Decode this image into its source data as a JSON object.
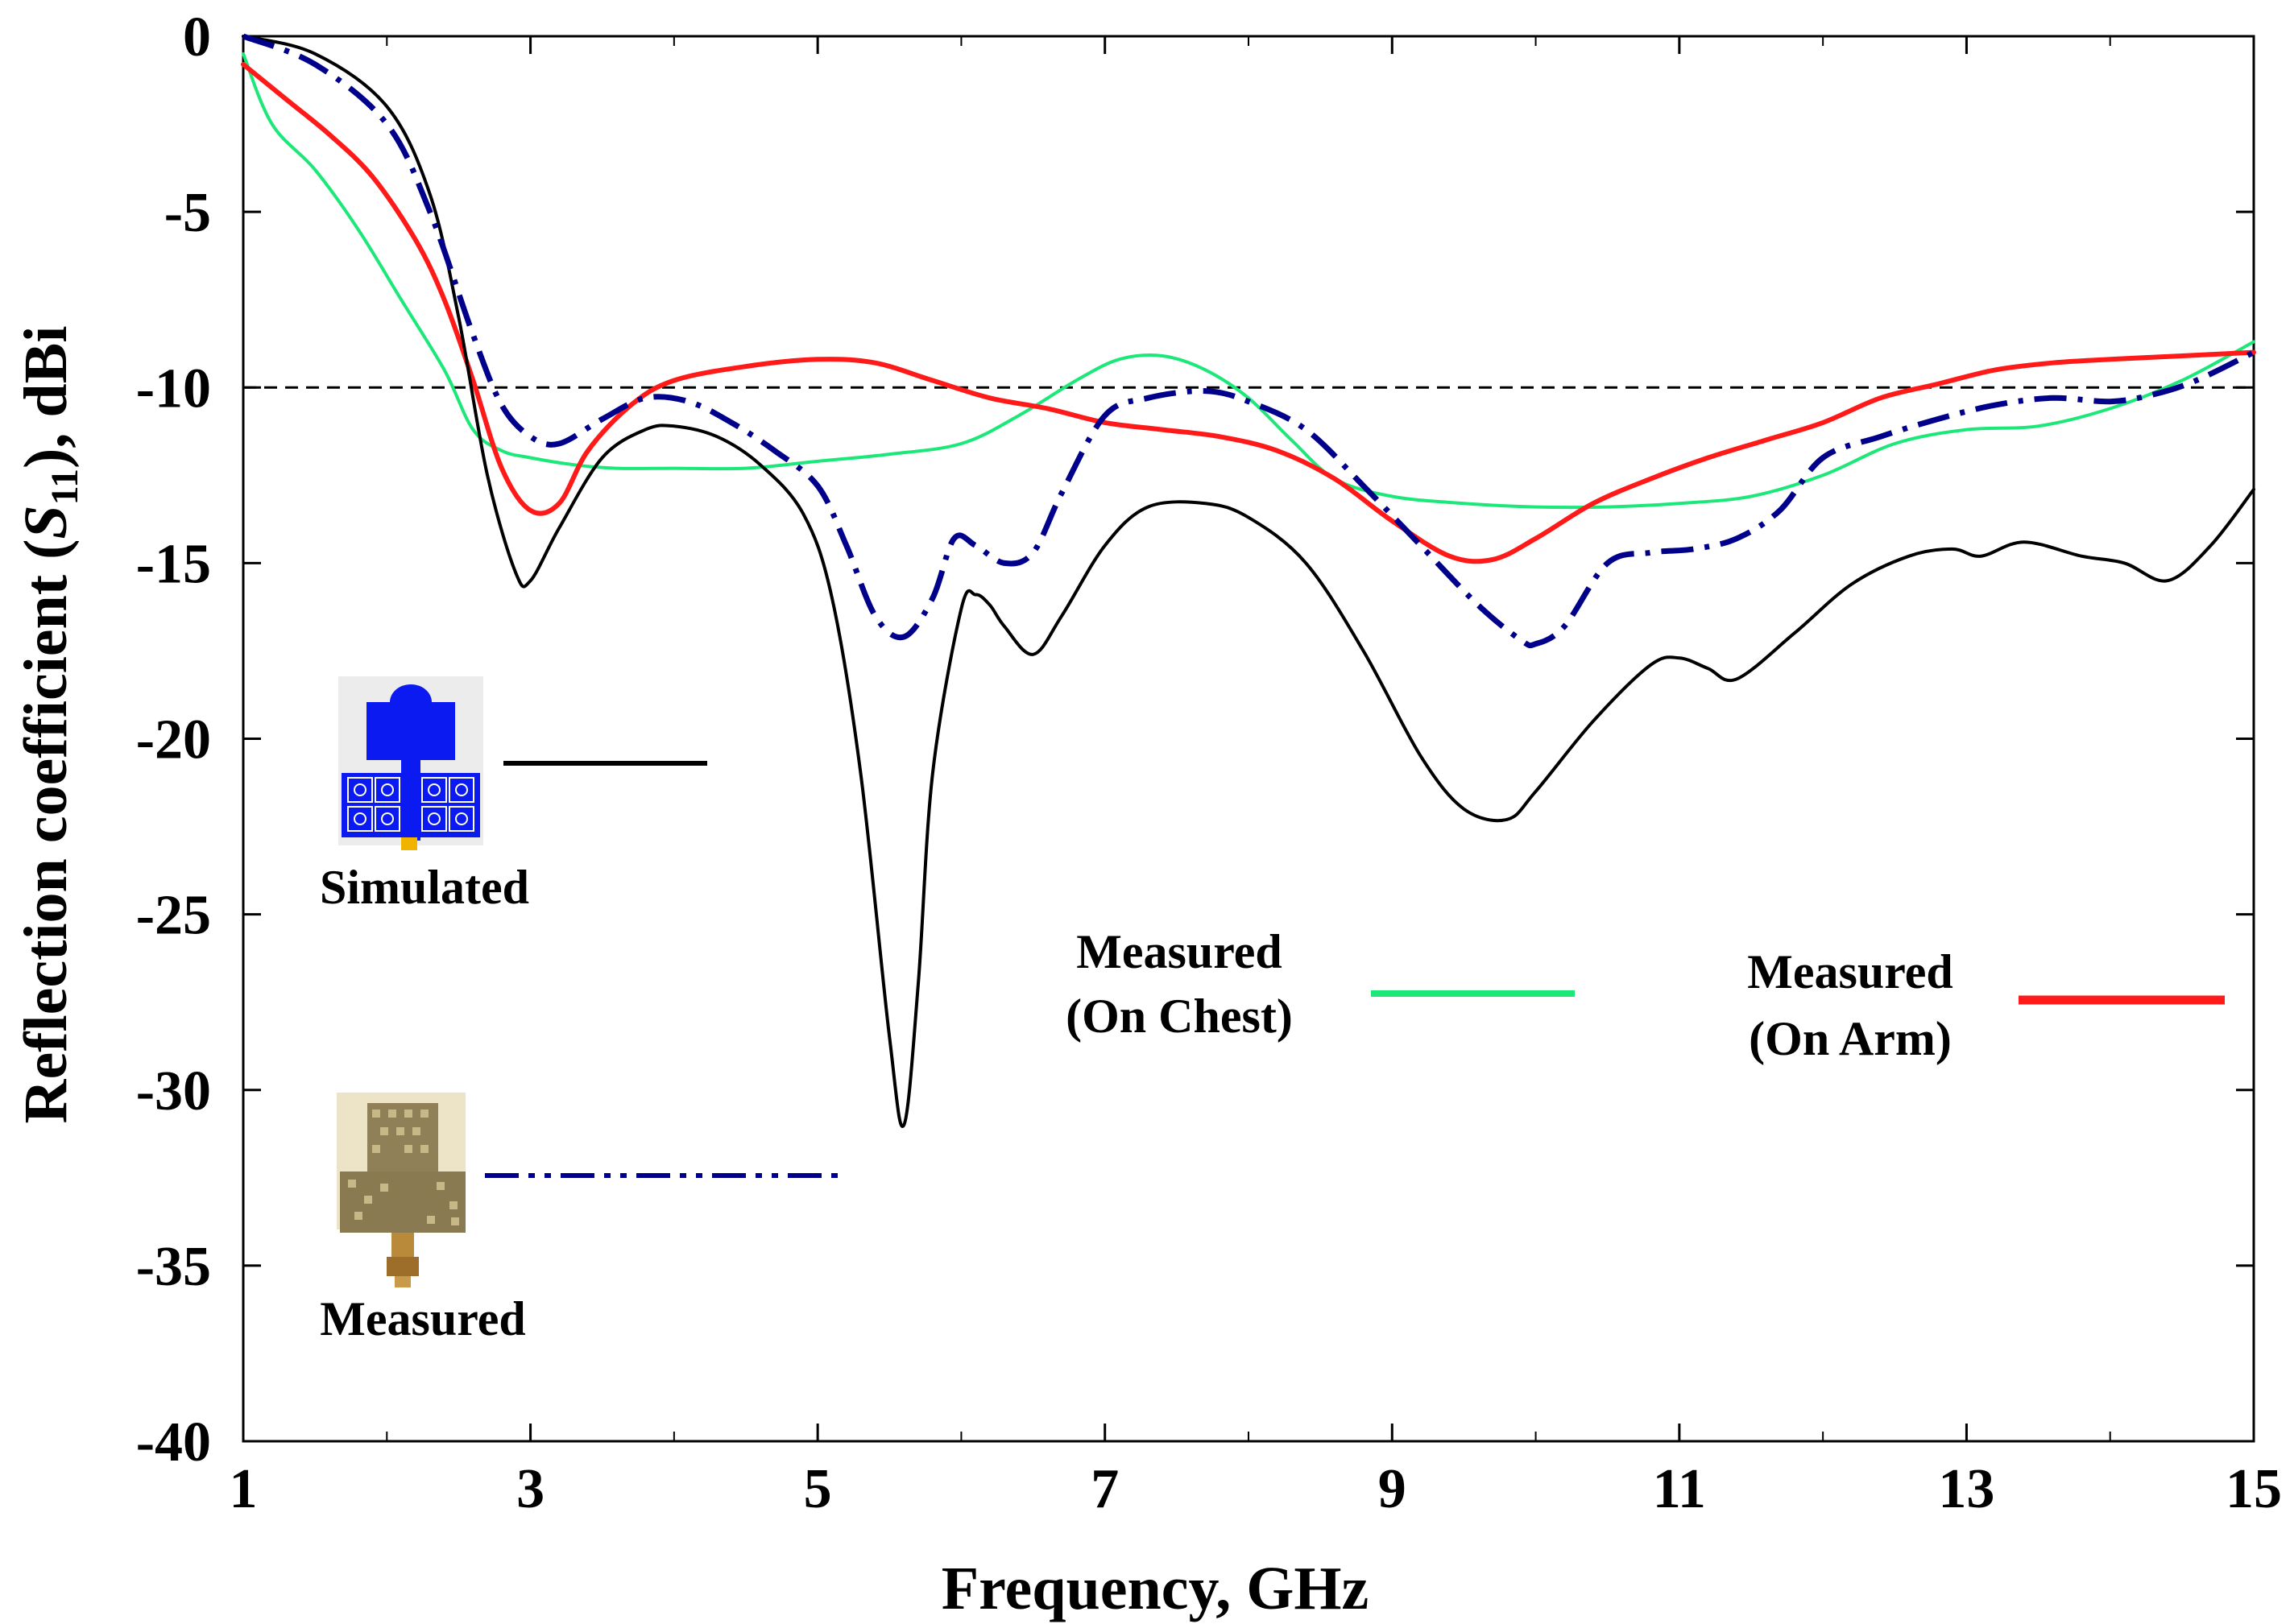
{
  "chart_data": {
    "type": "line",
    "title": "",
    "xlabel": "Frequency, GHz",
    "ylabel_parts": [
      "Reflection coefficient (",
      "S",
      "11",
      "), dBi"
    ],
    "xlim": [
      1,
      15
    ],
    "ylim": [
      -40,
      0
    ],
    "xticks": [
      "1",
      "3",
      "5",
      "7",
      "9",
      "11",
      "13",
      "15"
    ],
    "yticks": [
      "0",
      "-5",
      "-10",
      "-15",
      "-20",
      "-25",
      "-30",
      "-35",
      "-40"
    ],
    "reference_line": {
      "y": -10,
      "style": "dashed",
      "color": "#000000"
    },
    "series": [
      {
        "name": "Simulated",
        "color": "#000000",
        "style": "solid",
        "x": [
          1,
          1.5,
          2,
          2.3,
          2.5,
          2.7,
          2.9,
          3.0,
          3.2,
          3.5,
          3.8,
          4.0,
          4.3,
          4.6,
          4.9,
          5.1,
          5.3,
          5.5,
          5.6,
          5.7,
          5.8,
          6.0,
          6.1,
          6.2,
          6.3,
          6.5,
          6.7,
          7.0,
          7.3,
          7.7,
          8.0,
          8.4,
          8.8,
          9.2,
          9.5,
          9.8,
          10.0,
          10.4,
          10.8,
          11.0,
          11.2,
          11.4,
          11.8,
          12.2,
          12.6,
          12.9,
          13.1,
          13.4,
          13.8,
          14.1,
          14.4,
          14.7,
          15.0
        ],
        "y": [
          0,
          -0.5,
          -2.0,
          -4.5,
          -8.0,
          -12.5,
          -15.3,
          -15.5,
          -14.0,
          -12.0,
          -11.2,
          -11.1,
          -11.4,
          -12.2,
          -13.6,
          -16.0,
          -21.0,
          -28.5,
          -31.0,
          -27.0,
          -21.0,
          -16.3,
          -15.9,
          -16.2,
          -16.8,
          -17.6,
          -16.5,
          -14.5,
          -13.4,
          -13.3,
          -13.7,
          -15.0,
          -17.5,
          -20.5,
          -22.0,
          -22.3,
          -21.5,
          -19.5,
          -17.9,
          -17.7,
          -18.0,
          -18.3,
          -17.0,
          -15.6,
          -14.8,
          -14.6,
          -14.8,
          -14.4,
          -14.8,
          -15.0,
          -15.5,
          -14.5,
          -12.9
        ]
      },
      {
        "name": "Measured",
        "color": "#00008b",
        "style": "dash-dot",
        "x": [
          1,
          1.5,
          2,
          2.3,
          2.6,
          2.8,
          3.0,
          3.2,
          3.5,
          3.8,
          4.1,
          4.4,
          4.7,
          5.0,
          5.2,
          5.4,
          5.6,
          5.8,
          5.95,
          6.1,
          6.3,
          6.5,
          6.7,
          7.0,
          7.3,
          7.7,
          8.0,
          8.4,
          8.8,
          9.2,
          9.6,
          9.9,
          10.0,
          10.2,
          10.5,
          10.8,
          11.1,
          11.4,
          11.7,
          12.0,
          12.4,
          12.8,
          13.2,
          13.6,
          14.0,
          14.3,
          14.6,
          15.0
        ],
        "y": [
          0,
          -0.8,
          -2.5,
          -5.0,
          -8.5,
          -10.5,
          -11.4,
          -11.6,
          -10.9,
          -10.3,
          -10.4,
          -11.0,
          -11.8,
          -12.8,
          -14.5,
          -16.5,
          -17.1,
          -16.0,
          -14.3,
          -14.5,
          -15.0,
          -14.7,
          -13.0,
          -10.8,
          -10.3,
          -10.1,
          -10.4,
          -11.2,
          -12.8,
          -14.5,
          -16.2,
          -17.2,
          -17.3,
          -16.8,
          -15.0,
          -14.7,
          -14.6,
          -14.3,
          -13.5,
          -12.0,
          -11.4,
          -10.9,
          -10.5,
          -10.3,
          -10.4,
          -10.2,
          -9.8,
          -9.0
        ]
      },
      {
        "name": "Measured (On Chest)",
        "color": "#1ce87a",
        "style": "solid",
        "x": [
          1,
          1.2,
          1.5,
          1.8,
          2.1,
          2.4,
          2.6,
          2.8,
          3.0,
          3.3,
          3.6,
          4.0,
          4.5,
          5.0,
          5.5,
          6.0,
          6.4,
          6.8,
          7.1,
          7.4,
          7.7,
          8.0,
          8.3,
          8.6,
          9.0,
          9.5,
          10.0,
          10.5,
          11.0,
          11.5,
          12.0,
          12.5,
          13.0,
          13.5,
          14.0,
          14.5,
          15.0
        ],
        "y": [
          -0.5,
          -2.5,
          -3.8,
          -5.5,
          -7.5,
          -9.5,
          -11.2,
          -11.8,
          -12.0,
          -12.2,
          -12.3,
          -12.3,
          -12.3,
          -12.1,
          -11.9,
          -11.6,
          -10.8,
          -9.8,
          -9.2,
          -9.1,
          -9.5,
          -10.3,
          -11.5,
          -12.6,
          -13.1,
          -13.3,
          -13.4,
          -13.4,
          -13.3,
          -13.1,
          -12.5,
          -11.6,
          -11.2,
          -11.1,
          -10.6,
          -9.8,
          -8.7
        ]
      },
      {
        "name": "Measured (On Arm)",
        "color": "#ff1a1a",
        "style": "solid",
        "x": [
          1,
          1.3,
          1.6,
          1.9,
          2.2,
          2.4,
          2.6,
          2.8,
          3.0,
          3.2,
          3.4,
          3.7,
          4.0,
          4.5,
          5.0,
          5.4,
          5.8,
          6.2,
          6.6,
          7.0,
          7.4,
          7.8,
          8.2,
          8.6,
          9.0,
          9.4,
          9.7,
          10.0,
          10.4,
          10.8,
          11.2,
          11.6,
          12.0,
          12.4,
          12.8,
          13.2,
          13.6,
          14.0,
          14.5,
          15.0
        ],
        "y": [
          -0.8,
          -1.8,
          -2.8,
          -4.0,
          -5.8,
          -7.5,
          -9.8,
          -12.3,
          -13.5,
          -13.3,
          -11.8,
          -10.5,
          -9.8,
          -9.4,
          -9.2,
          -9.3,
          -9.8,
          -10.3,
          -10.6,
          -11.0,
          -11.2,
          -11.4,
          -11.8,
          -12.6,
          -13.8,
          -14.8,
          -14.9,
          -14.3,
          -13.3,
          -12.6,
          -12.0,
          -11.5,
          -11.0,
          -10.3,
          -9.9,
          -9.5,
          -9.3,
          -9.2,
          -9.1,
          -9.0
        ]
      }
    ],
    "legend": [
      {
        "label_lines": [
          "Simulated"
        ],
        "series": "Simulated",
        "placement": "left-middle"
      },
      {
        "label_lines": [
          "Measured"
        ],
        "series": "Measured",
        "placement": "left-lower"
      },
      {
        "label_lines": [
          "Measured",
          "(On Chest)"
        ],
        "series": "Measured (On Chest)",
        "placement": "center-lower"
      },
      {
        "label_lines": [
          "Measured",
          "(On Arm)"
        ],
        "series": "Measured (On Arm)",
        "placement": "right-lower"
      }
    ]
  }
}
